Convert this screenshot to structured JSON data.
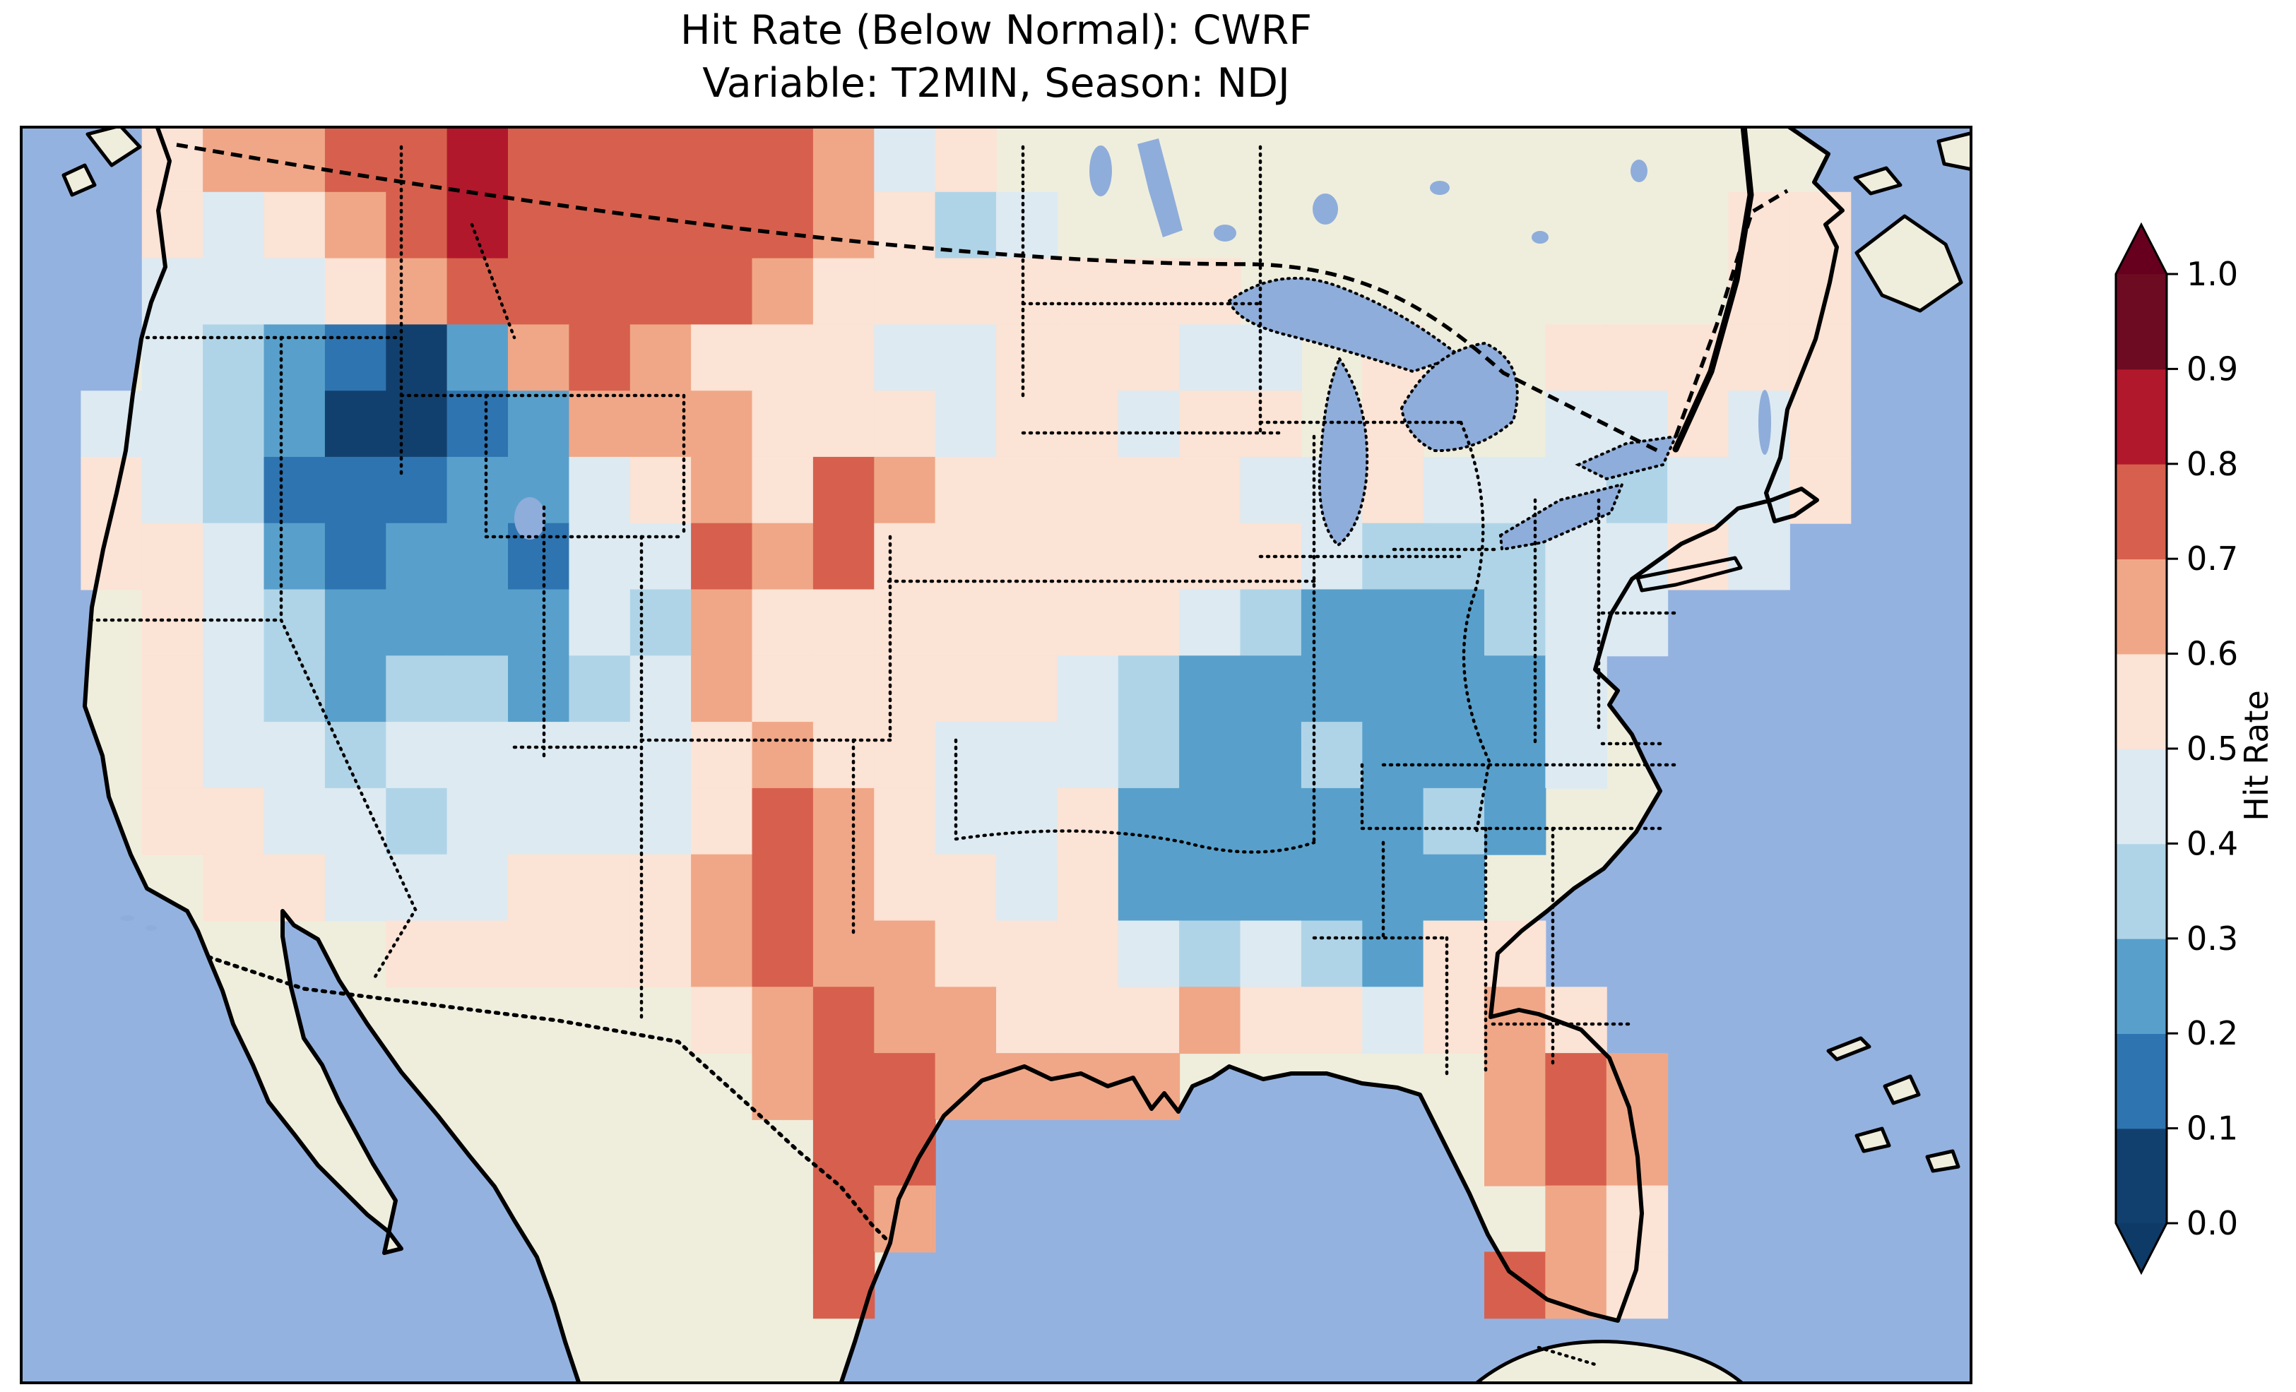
{
  "title": {
    "line1": "Hit Rate (Below Normal): CWRF",
    "line2": "Variable: T2MIN, Season: NDJ"
  },
  "colorbar": {
    "label": "Hit Rate",
    "ticks": [
      "1.0",
      "0.9",
      "0.8",
      "0.7",
      "0.6",
      "0.5",
      "0.4",
      "0.3",
      "0.2",
      "0.1",
      "0.0"
    ],
    "extend": "both",
    "extend_over_color": "#67001f",
    "extend_under_color": "#0d3a66",
    "outline_color": "#000000"
  },
  "map_colors": {
    "ocean": "#94b2e0",
    "land": "#efeedd",
    "lake": "#8fadda",
    "coastline": "#000000",
    "border_dotted": "#000000"
  },
  "chart_data": {
    "type": "heatmap",
    "title": "Hit Rate (Below Normal): CWRF",
    "subtitle": "Variable: T2MIN, Season: NDJ",
    "metric": "Hit Rate (Below Normal)",
    "model": "CWRF",
    "variable": "T2MIN",
    "season": "NDJ",
    "region": "Contiguous United States",
    "colorbar_label": "Hit Rate",
    "value_range": [
      0.0,
      1.0
    ],
    "bin_edges": [
      0.0,
      0.1,
      0.2,
      0.3,
      0.4,
      0.5,
      0.6,
      0.7,
      0.8,
      0.9,
      1.0
    ],
    "colormap_low_to_high": [
      "#12406e",
      "#2e74b0",
      "#58a0cb",
      "#b0d4e7",
      "#ddeaf2",
      "#fbe3d5",
      "#f0a787",
      "#d6604d",
      "#b2182b",
      "#6d0b22"
    ],
    "legend_position": "right",
    "grid": {
      "cols": 32,
      "rows": 19,
      "cell_encoding": "each char is one grid cell, west-to-east / north-to-south; digit d means hit-rate bin [d/10,(d+1)/10); '.' = no data (outside CONUS)",
      "rows_data": [
        "..56677877777645................",
        "..545678777776534...........55..",
        "..444567777765555555........55..",
        "..4321026765554455544.5..55555..",
        ".44320012666555455455.5..44545..",
        ".54311122456576555554454443445..",
        ".5542122144767555555543334454...",
        "..5432222436555555543222344.....",
        "..543233234655555432222224......",
        "..544344444565544432232224......",
        "..55443444457654452222232.......",
        "...554445556765545222222........",
        "......5555567665554343255.......",
        "...........567665556554565......",
        "............6776666.....676.....",
        ".............77.........676.....",
        ".............76..........65.....",
        ".............7..........765.....",
        "................................"
      ],
      "notable_features": [
        "lowest hit rates (0.0-0.2) over the interior Northwest / Great Basin",
        "high hit rates (0.7-0.9) along the Montana-North Dakota border band",
        "high hit rates (0.6-0.8) over central/south Texas gulf region and Florida peninsula",
        "low hit rates (0.2-0.3) across the Southeast (TN/MS/AL/GA/Carolinas) and Mid-Atlantic interior",
        "near-neutral (0.5-0.6) across the central Plains and Midwest"
      ]
    }
  }
}
